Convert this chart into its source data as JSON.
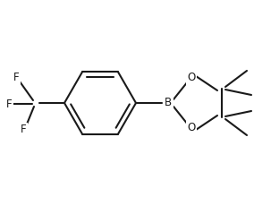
{
  "background_color": "#ffffff",
  "line_color": "#1a1a1a",
  "line_width": 1.5,
  "font_size": 8.5,
  "fig_width": 2.84,
  "fig_height": 2.2,
  "dpi": 100,
  "xlim": [
    0,
    284
  ],
  "ylim": [
    0,
    220
  ]
}
